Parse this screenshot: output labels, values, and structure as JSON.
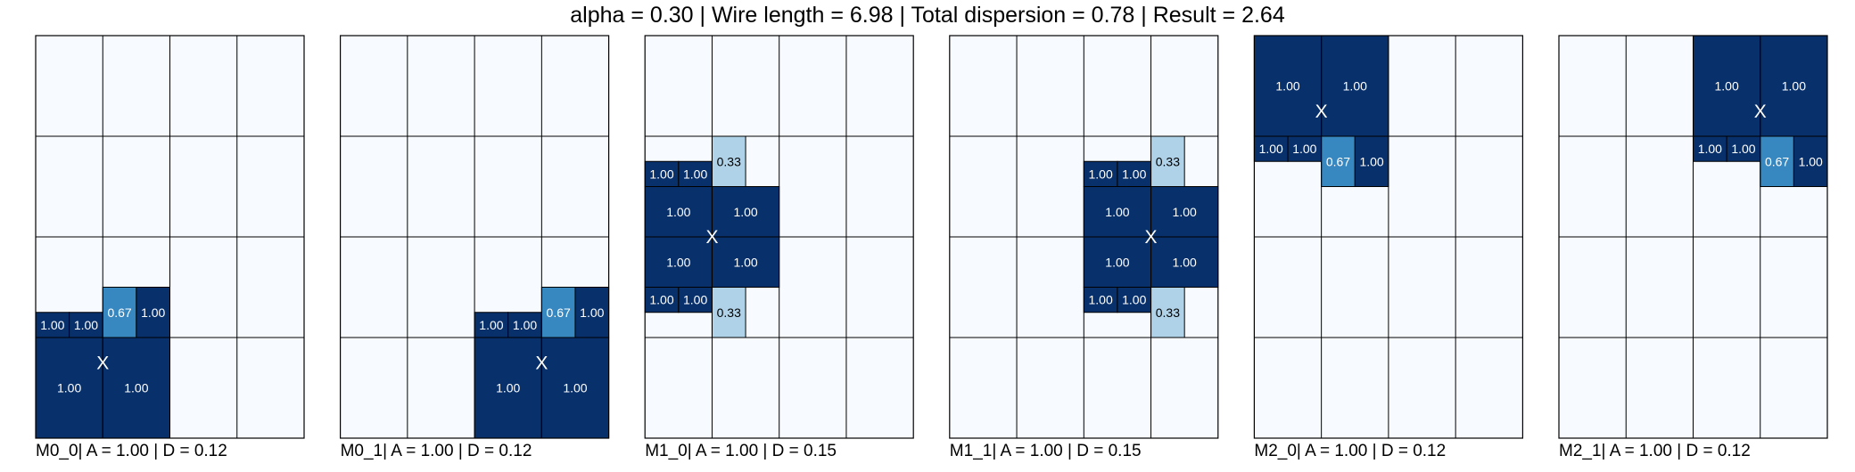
{
  "title": "alpha = 0.30 | Wire length = 6.98 | Total dispersion = 0.78 | Result = 2.64",
  "chart_data": {
    "type": "heatmap",
    "grid": {
      "cols": 4,
      "rows": 4,
      "cell_cols": 2,
      "cell_rows": 2
    },
    "colors": {
      "empty": "#f7fbff",
      "full": "#08306b",
      "mid": "#3787c0",
      "light": "#b0d2e8"
    },
    "center_marker": "X",
    "panels": [
      {
        "caption": "M0_0| A = 1.00 | D = 0.12",
        "center": [
          1,
          0.75
        ],
        "blocks": [
          {
            "x": 0,
            "y": 0,
            "w": 1,
            "h": 1,
            "v": 1.0,
            "label": "1.00"
          },
          {
            "x": 1,
            "y": 0,
            "w": 1,
            "h": 1,
            "v": 1.0,
            "label": "1.00"
          },
          {
            "x": 0,
            "y": 1,
            "w": 0.5,
            "h": 0.25,
            "v": 1.0,
            "label": "1.00"
          },
          {
            "x": 0.5,
            "y": 1,
            "w": 0.5,
            "h": 0.25,
            "v": 1.0,
            "label": "1.00"
          },
          {
            "x": 1,
            "y": 1,
            "w": 0.5,
            "h": 0.5,
            "v": 0.67,
            "label": "0.67"
          },
          {
            "x": 1.5,
            "y": 1,
            "w": 0.5,
            "h": 0.5,
            "v": 1.0,
            "label": "1.00"
          }
        ]
      },
      {
        "caption": "M0_1| A = 1.00 | D = 0.12",
        "center": [
          3,
          0.75
        ],
        "blocks": [
          {
            "x": 2,
            "y": 0,
            "w": 1,
            "h": 1,
            "v": 1.0,
            "label": "1.00"
          },
          {
            "x": 3,
            "y": 0,
            "w": 1,
            "h": 1,
            "v": 1.0,
            "label": "1.00"
          },
          {
            "x": 2,
            "y": 1,
            "w": 0.5,
            "h": 0.25,
            "v": 1.0,
            "label": "1.00"
          },
          {
            "x": 2.5,
            "y": 1,
            "w": 0.5,
            "h": 0.25,
            "v": 1.0,
            "label": "1.00"
          },
          {
            "x": 3,
            "y": 1,
            "w": 0.5,
            "h": 0.5,
            "v": 0.67,
            "label": "0.67"
          },
          {
            "x": 3.5,
            "y": 1,
            "w": 0.5,
            "h": 0.5,
            "v": 1.0,
            "label": "1.00"
          }
        ]
      },
      {
        "caption": "M1_0| A = 1.00 | D = 0.15",
        "center": [
          1,
          2
        ],
        "blocks": [
          {
            "x": 0,
            "y": 1.5,
            "w": 1,
            "h": 0.5,
            "v": 1.0,
            "label": "1.00"
          },
          {
            "x": 1,
            "y": 1.5,
            "w": 1,
            "h": 0.5,
            "v": 1.0,
            "label": "1.00"
          },
          {
            "x": 0,
            "y": 2,
            "w": 1,
            "h": 0.5,
            "v": 1.0,
            "label": "1.00"
          },
          {
            "x": 1,
            "y": 2,
            "w": 1,
            "h": 0.5,
            "v": 1.0,
            "label": "1.00"
          },
          {
            "x": 0,
            "y": 2.5,
            "w": 0.5,
            "h": 0.25,
            "v": 1.0,
            "label": "1.00"
          },
          {
            "x": 0.5,
            "y": 2.5,
            "w": 0.5,
            "h": 0.25,
            "v": 1.0,
            "label": "1.00"
          },
          {
            "x": 0,
            "y": 1.25,
            "w": 0.5,
            "h": 0.25,
            "v": 1.0,
            "label": "1.00"
          },
          {
            "x": 0.5,
            "y": 1.25,
            "w": 0.5,
            "h": 0.25,
            "v": 1.0,
            "label": "1.00"
          },
          {
            "x": 1,
            "y": 2.5,
            "w": 0.5,
            "h": 0.5,
            "v": 0.33,
            "label": "0.33"
          },
          {
            "x": 1,
            "y": 1,
            "w": 0.5,
            "h": 0.5,
            "v": 0.33,
            "label": "0.33"
          }
        ]
      },
      {
        "caption": "M1_1| A = 1.00 | D = 0.15",
        "center": [
          3,
          2
        ],
        "blocks": [
          {
            "x": 2,
            "y": 1.5,
            "w": 1,
            "h": 0.5,
            "v": 1.0,
            "label": "1.00"
          },
          {
            "x": 3,
            "y": 1.5,
            "w": 1,
            "h": 0.5,
            "v": 1.0,
            "label": "1.00"
          },
          {
            "x": 2,
            "y": 2,
            "w": 1,
            "h": 0.5,
            "v": 1.0,
            "label": "1.00"
          },
          {
            "x": 3,
            "y": 2,
            "w": 1,
            "h": 0.5,
            "v": 1.0,
            "label": "1.00"
          },
          {
            "x": 2,
            "y": 2.5,
            "w": 0.5,
            "h": 0.25,
            "v": 1.0,
            "label": "1.00"
          },
          {
            "x": 2.5,
            "y": 2.5,
            "w": 0.5,
            "h": 0.25,
            "v": 1.0,
            "label": "1.00"
          },
          {
            "x": 2,
            "y": 1.25,
            "w": 0.5,
            "h": 0.25,
            "v": 1.0,
            "label": "1.00"
          },
          {
            "x": 2.5,
            "y": 1.25,
            "w": 0.5,
            "h": 0.25,
            "v": 1.0,
            "label": "1.00"
          },
          {
            "x": 3,
            "y": 2.5,
            "w": 0.5,
            "h": 0.5,
            "v": 0.33,
            "label": "0.33"
          },
          {
            "x": 3,
            "y": 1,
            "w": 0.5,
            "h": 0.5,
            "v": 0.33,
            "label": "0.33"
          }
        ]
      },
      {
        "caption": "M2_0| A = 1.00 | D = 0.12",
        "center": [
          1,
          3.25
        ],
        "blocks": [
          {
            "x": 0,
            "y": 3,
            "w": 1,
            "h": 1,
            "v": 1.0,
            "label": "1.00"
          },
          {
            "x": 1,
            "y": 3,
            "w": 1,
            "h": 1,
            "v": 1.0,
            "label": "1.00"
          },
          {
            "x": 0,
            "y": 2.75,
            "w": 0.5,
            "h": 0.25,
            "v": 1.0,
            "label": "1.00"
          },
          {
            "x": 0.5,
            "y": 2.75,
            "w": 0.5,
            "h": 0.25,
            "v": 1.0,
            "label": "1.00"
          },
          {
            "x": 1,
            "y": 2.5,
            "w": 0.5,
            "h": 0.5,
            "v": 0.67,
            "label": "0.67"
          },
          {
            "x": 1.5,
            "y": 2.5,
            "w": 0.5,
            "h": 0.5,
            "v": 1.0,
            "label": "1.00"
          }
        ]
      },
      {
        "caption": "M2_1| A = 1.00 | D = 0.12",
        "center": [
          3,
          3.25
        ],
        "blocks": [
          {
            "x": 2,
            "y": 3,
            "w": 1,
            "h": 1,
            "v": 1.0,
            "label": "1.00"
          },
          {
            "x": 3,
            "y": 3,
            "w": 1,
            "h": 1,
            "v": 1.0,
            "label": "1.00"
          },
          {
            "x": 2,
            "y": 2.75,
            "w": 0.5,
            "h": 0.25,
            "v": 1.0,
            "label": "1.00"
          },
          {
            "x": 2.5,
            "y": 2.75,
            "w": 0.5,
            "h": 0.25,
            "v": 1.0,
            "label": "1.00"
          },
          {
            "x": 3,
            "y": 2.5,
            "w": 0.5,
            "h": 0.5,
            "v": 0.67,
            "label": "0.67"
          },
          {
            "x": 3.5,
            "y": 2.5,
            "w": 0.5,
            "h": 0.5,
            "v": 1.0,
            "label": "1.00"
          }
        ]
      }
    ]
  }
}
